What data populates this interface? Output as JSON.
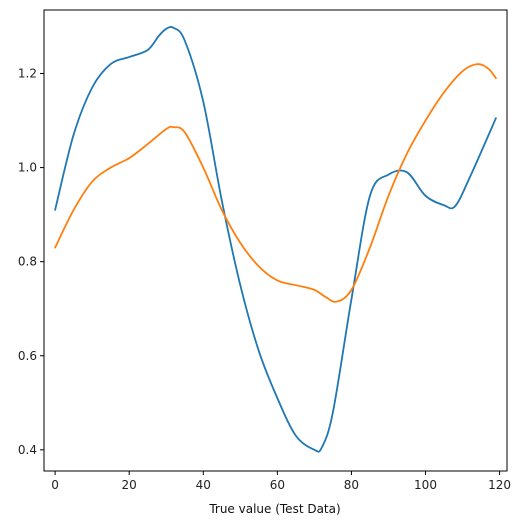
{
  "chart_data": {
    "type": "line",
    "title": "",
    "xlabel": "True value (Test Data)",
    "ylabel": "",
    "xlim": [
      -3,
      122
    ],
    "ylim": [
      0.355,
      1.335
    ],
    "xticks": [
      0,
      20,
      40,
      60,
      80,
      100,
      120
    ],
    "yticks": [
      0.4,
      0.6,
      0.8,
      1.0,
      1.2
    ],
    "xtick_labels": [
      "0",
      "20",
      "40",
      "60",
      "80",
      "100",
      "120"
    ],
    "ytick_labels": [
      "0.4",
      "0.6",
      "0.8",
      "1.0",
      "1.2"
    ],
    "grid": false,
    "legend": "none",
    "series": [
      {
        "color": "#1f77b4",
        "x": [
          0,
          5,
          10,
          15,
          20,
          25,
          28,
          30,
          32,
          35,
          40,
          45,
          50,
          55,
          60,
          65,
          70,
          72,
          75,
          80,
          85,
          90,
          95,
          100,
          105,
          108,
          112,
          119
        ],
        "y": [
          0.91,
          1.07,
          1.17,
          1.22,
          1.235,
          1.25,
          1.28,
          1.295,
          1.297,
          1.27,
          1.14,
          0.93,
          0.75,
          0.61,
          0.51,
          0.43,
          0.4,
          0.405,
          0.48,
          0.72,
          0.94,
          0.985,
          0.99,
          0.94,
          0.92,
          0.918,
          0.98,
          1.105
        ]
      },
      {
        "color": "#ff7f0e",
        "x": [
          0,
          5,
          10,
          15,
          20,
          25,
          30,
          32,
          35,
          40,
          45,
          50,
          55,
          60,
          65,
          70,
          73,
          76,
          80,
          85,
          90,
          95,
          100,
          105,
          110,
          114,
          117,
          119
        ],
        "y": [
          0.83,
          0.91,
          0.97,
          1.0,
          1.02,
          1.05,
          1.082,
          1.086,
          1.075,
          1.0,
          0.91,
          0.84,
          0.79,
          0.76,
          0.75,
          0.74,
          0.725,
          0.715,
          0.74,
          0.83,
          0.94,
          1.03,
          1.1,
          1.16,
          1.205,
          1.22,
          1.21,
          1.19
        ]
      }
    ]
  }
}
